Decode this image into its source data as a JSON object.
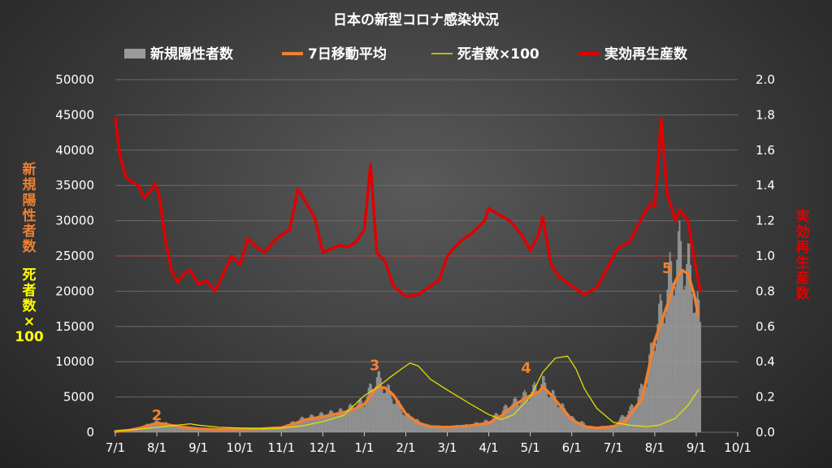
{
  "chart_data": {
    "type": "bar",
    "title": "日本の新型コロナ感染状況",
    "legend": {
      "placement": "top",
      "items": [
        {
          "label": "新規陽性者数",
          "color": "#9a9a9a",
          "kind": "bar"
        },
        {
          "label": "7日移動平均",
          "color": "#f08030",
          "kind": "line"
        },
        {
          "label": "死者数×100",
          "color": "#e0e000",
          "kind": "line"
        },
        {
          "label": "実効再生産数",
          "color": "#e00000",
          "kind": "line"
        }
      ]
    },
    "y_left": {
      "ticks": [
        "50000",
        "45000",
        "40000",
        "35000",
        "30000",
        "25000",
        "20000",
        "15000",
        "10000",
        "5000",
        "0"
      ],
      "range": [
        0,
        50000
      ],
      "label_top": [
        "新",
        "規",
        "陽",
        "性",
        "者",
        "数"
      ],
      "label_bottom": [
        "死",
        "者",
        "数",
        "×",
        "100"
      ],
      "label_top_color": "#f08030",
      "label_bottom_color": "#ffff00"
    },
    "y_right": {
      "ticks": [
        "2.0",
        "1.8",
        "1.6",
        "1.4",
        "1.2",
        "1.0",
        "0.8",
        "0.6",
        "0.4",
        "0.2",
        "0.0"
      ],
      "range": [
        0,
        2.0
      ],
      "label": [
        "実",
        "効",
        "再",
        "生",
        "産",
        "数"
      ],
      "label_color": "#e00000",
      "reference_line": 1.0
    },
    "x_axis": {
      "ticks": [
        "7/1",
        "8/1",
        "9/1",
        "10/1",
        "11/1",
        "12/1",
        "1/1",
        "2/1",
        "3/1",
        "4/1",
        "5/1",
        "6/1",
        "7/1",
        "8/1",
        "9/1",
        "10/1"
      ],
      "unit": "month index from 7/1 (1 unit = 1 month)"
    },
    "peak_labels": [
      {
        "text": "2",
        "x": 1.0,
        "y": 1700
      },
      {
        "text": "3",
        "x": 6.25,
        "y": 8800
      },
      {
        "text": "4",
        "x": 9.9,
        "y": 8400
      },
      {
        "text": "5",
        "x": 13.3,
        "y": 22600
      }
    ],
    "series": [
      {
        "name": "7日移動平均",
        "axis": "left",
        "color": "#f08030",
        "points": [
          [
            0,
            100
          ],
          [
            0.3,
            250
          ],
          [
            0.6,
            600
          ],
          [
            0.85,
            1050
          ],
          [
            1.0,
            1300
          ],
          [
            1.2,
            1150
          ],
          [
            1.5,
            800
          ],
          [
            2.0,
            500
          ],
          [
            2.5,
            380
          ],
          [
            3.0,
            450
          ],
          [
            3.5,
            500
          ],
          [
            4.0,
            650
          ],
          [
            4.3,
            1200
          ],
          [
            4.6,
            1800
          ],
          [
            5.0,
            2200
          ],
          [
            5.5,
            2800
          ],
          [
            5.8,
            3400
          ],
          [
            6.0,
            4000
          ],
          [
            6.2,
            5500
          ],
          [
            6.3,
            6400
          ],
          [
            6.5,
            6300
          ],
          [
            6.7,
            5300
          ],
          [
            7.0,
            2600
          ],
          [
            7.3,
            1300
          ],
          [
            7.6,
            800
          ],
          [
            8.0,
            700
          ],
          [
            8.5,
            900
          ],
          [
            9.0,
            1300
          ],
          [
            9.3,
            2300
          ],
          [
            9.6,
            3800
          ],
          [
            10.0,
            5200
          ],
          [
            10.2,
            5600
          ],
          [
            10.3,
            6500
          ],
          [
            10.5,
            5300
          ],
          [
            10.8,
            3200
          ],
          [
            11.0,
            1800
          ],
          [
            11.3,
            800
          ],
          [
            11.6,
            600
          ],
          [
            12.0,
            800
          ],
          [
            12.3,
            1600
          ],
          [
            12.7,
            4800
          ],
          [
            13.0,
            13000
          ],
          [
            13.3,
            18000
          ],
          [
            13.5,
            21500
          ],
          [
            13.65,
            23000
          ],
          [
            13.8,
            22500
          ],
          [
            13.95,
            19500
          ],
          [
            14.05,
            16600
          ]
        ]
      },
      {
        "name": "死者数×100",
        "axis": "left",
        "color": "#e0e000",
        "points": [
          [
            0,
            200
          ],
          [
            0.5,
            400
          ],
          [
            1.0,
            700
          ],
          [
            1.5,
            1000
          ],
          [
            1.8,
            1200
          ],
          [
            2.0,
            1000
          ],
          [
            2.5,
            700
          ],
          [
            3.0,
            600
          ],
          [
            3.5,
            500
          ],
          [
            4.0,
            600
          ],
          [
            4.5,
            900
          ],
          [
            5.0,
            1500
          ],
          [
            5.5,
            2400
          ],
          [
            6.0,
            5200
          ],
          [
            6.3,
            6300
          ],
          [
            6.6,
            7700
          ],
          [
            6.9,
            9000
          ],
          [
            7.1,
            9800
          ],
          [
            7.3,
            9400
          ],
          [
            7.6,
            7500
          ],
          [
            8.0,
            6000
          ],
          [
            8.5,
            4200
          ],
          [
            9.0,
            2500
          ],
          [
            9.3,
            1800
          ],
          [
            9.6,
            2500
          ],
          [
            10.0,
            5000
          ],
          [
            10.3,
            8500
          ],
          [
            10.6,
            10500
          ],
          [
            10.9,
            10800
          ],
          [
            11.1,
            9000
          ],
          [
            11.3,
            6200
          ],
          [
            11.6,
            3400
          ],
          [
            12.0,
            1400
          ],
          [
            12.4,
            1000
          ],
          [
            12.8,
            800
          ],
          [
            13.1,
            1000
          ],
          [
            13.5,
            2000
          ],
          [
            13.8,
            3800
          ],
          [
            14.05,
            6000
          ]
        ]
      },
      {
        "name": "実効再生産数",
        "axis": "right",
        "color": "#e00000",
        "points": [
          [
            0,
            1.78
          ],
          [
            0.1,
            1.58
          ],
          [
            0.25,
            1.45
          ],
          [
            0.4,
            1.42
          ],
          [
            0.55,
            1.4
          ],
          [
            0.7,
            1.33
          ],
          [
            0.85,
            1.37
          ],
          [
            0.95,
            1.41
          ],
          [
            1.05,
            1.35
          ],
          [
            1.2,
            1.1
          ],
          [
            1.35,
            0.92
          ],
          [
            1.5,
            0.85
          ],
          [
            1.65,
            0.9
          ],
          [
            1.8,
            0.92
          ],
          [
            2.0,
            0.84
          ],
          [
            2.2,
            0.86
          ],
          [
            2.4,
            0.8
          ],
          [
            2.6,
            0.9
          ],
          [
            2.8,
            1.0
          ],
          [
            3.0,
            0.95
          ],
          [
            3.2,
            1.1
          ],
          [
            3.4,
            1.05
          ],
          [
            3.6,
            1.02
          ],
          [
            3.8,
            1.08
          ],
          [
            4.0,
            1.12
          ],
          [
            4.2,
            1.15
          ],
          [
            4.4,
            1.38
          ],
          [
            4.6,
            1.3
          ],
          [
            4.8,
            1.22
          ],
          [
            5.0,
            1.02
          ],
          [
            5.2,
            1.04
          ],
          [
            5.4,
            1.06
          ],
          [
            5.6,
            1.05
          ],
          [
            5.8,
            1.08
          ],
          [
            6.0,
            1.15
          ],
          [
            6.1,
            1.4
          ],
          [
            6.15,
            1.52
          ],
          [
            6.3,
            1.02
          ],
          [
            6.5,
            0.97
          ],
          [
            6.7,
            0.83
          ],
          [
            7.0,
            0.77
          ],
          [
            7.3,
            0.78
          ],
          [
            7.6,
            0.83
          ],
          [
            7.8,
            0.86
          ],
          [
            8.0,
            1.0
          ],
          [
            8.3,
            1.08
          ],
          [
            8.6,
            1.13
          ],
          [
            8.9,
            1.2
          ],
          [
            9.0,
            1.27
          ],
          [
            9.2,
            1.24
          ],
          [
            9.5,
            1.2
          ],
          [
            9.8,
            1.12
          ],
          [
            10.0,
            1.03
          ],
          [
            10.2,
            1.12
          ],
          [
            10.3,
            1.22
          ],
          [
            10.5,
            0.95
          ],
          [
            10.7,
            0.88
          ],
          [
            11.0,
            0.83
          ],
          [
            11.3,
            0.78
          ],
          [
            11.6,
            0.82
          ],
          [
            11.9,
            0.95
          ],
          [
            12.1,
            1.04
          ],
          [
            12.4,
            1.08
          ],
          [
            12.7,
            1.22
          ],
          [
            12.9,
            1.3
          ],
          [
            13.0,
            1.28
          ],
          [
            13.1,
            1.6
          ],
          [
            13.15,
            1.78
          ],
          [
            13.3,
            1.35
          ],
          [
            13.5,
            1.2
          ],
          [
            13.6,
            1.26
          ],
          [
            13.8,
            1.2
          ],
          [
            13.95,
            0.98
          ],
          [
            14.1,
            0.8
          ]
        ]
      },
      {
        "name": "新規陽性者数",
        "axis": "left",
        "color": "#a0a0a0",
        "points": [
          [
            0,
            150
          ],
          [
            0.5,
            500
          ],
          [
            1.0,
            1500
          ],
          [
            1.5,
            900
          ],
          [
            2.0,
            550
          ],
          [
            2.5,
            400
          ],
          [
            3.0,
            500
          ],
          [
            3.5,
            550
          ],
          [
            4.0,
            700
          ],
          [
            4.5,
            1900
          ],
          [
            5.0,
            2500
          ],
          [
            5.5,
            3000
          ],
          [
            6.0,
            4400
          ],
          [
            6.3,
            7800
          ],
          [
            6.5,
            6500
          ],
          [
            7.0,
            2500
          ],
          [
            7.5,
            900
          ],
          [
            8.0,
            800
          ],
          [
            8.5,
            1000
          ],
          [
            9.0,
            1600
          ],
          [
            9.5,
            3800
          ],
          [
            10.0,
            5600
          ],
          [
            10.3,
            7000
          ],
          [
            10.6,
            4800
          ],
          [
            11.0,
            2000
          ],
          [
            11.5,
            700
          ],
          [
            12.0,
            900
          ],
          [
            12.5,
            3800
          ],
          [
            12.8,
            7500
          ],
          [
            13.0,
            14000
          ],
          [
            13.2,
            18000
          ],
          [
            13.4,
            22500
          ],
          [
            13.6,
            25500
          ],
          [
            13.8,
            23500
          ],
          [
            14.0,
            19000
          ],
          [
            14.1,
            14500
          ]
        ]
      }
    ]
  }
}
